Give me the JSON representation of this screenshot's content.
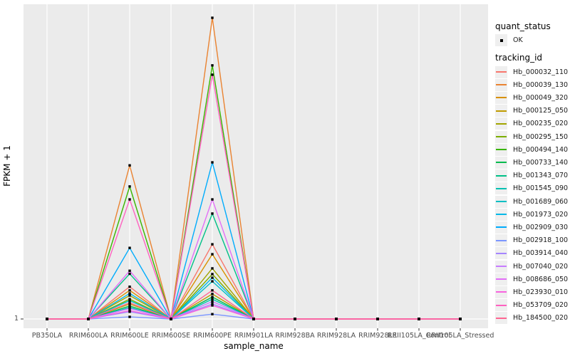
{
  "figure": {
    "x_axis_title": "sample_name",
    "y_axis_title": "FPKM + 1",
    "y_tick_label": "1"
  },
  "legend": {
    "quant_status_title": "quant_status",
    "quant_status_items": [
      {
        "label": "OK",
        "glyph": "black-point-icon"
      }
    ],
    "tracking_id_title": "tracking_id"
  },
  "colors": {
    "panel_background": "#EBEBEB",
    "gridline": "#FFFFFF",
    "axis_text": "#4D4D4D",
    "tick_mark": "#333333",
    "legend_key_background": "#EFEFEF",
    "point": "#000000"
  },
  "chart_data": {
    "type": "line",
    "title": "",
    "xlabel": "sample_name",
    "ylabel": "FPKM + 1",
    "legend_position": "right",
    "grid": "vertical white major gridlines on grey panel; single horizontal gridline at y = 1",
    "y_axis": {
      "scale": "log-like, only labelled tick is 1 at the baseline",
      "baseline_value": 1
    },
    "values_unit": "relative peak height above the FPKM+1=1 baseline (1.0 = tallest peak, Hb_000039_130 at RRIM600PE)",
    "point_layer": "black square point at every sample for every tracking_id (quant_status = OK)",
    "categories": [
      "PB350LA",
      "RRIM600LA",
      "RRIM600LE",
      "RRIM600SE",
      "RRIM600PE",
      "RRIM901LA",
      "RRIM928BA",
      "RRIM928LA",
      "RRIM928LE",
      "RRII105LA_Control",
      "RRII105LA_Stressed"
    ],
    "series": [
      {
        "name": "Hb_000032_110",
        "color": "#F8766D",
        "values": [
          0,
          0,
          0.107,
          0,
          0.248,
          0,
          0,
          0,
          0,
          0,
          0
        ]
      },
      {
        "name": "Hb_000039_130",
        "color": "#EA8331",
        "values": [
          0,
          0,
          0.51,
          0,
          1.0,
          0,
          0,
          0,
          0,
          0,
          0
        ]
      },
      {
        "name": "Hb_000049_320",
        "color": "#D89000",
        "values": [
          0,
          0,
          0.095,
          0,
          0.215,
          0,
          0,
          0,
          0,
          0,
          0
        ]
      },
      {
        "name": "Hb_000125_050",
        "color": "#C09B00",
        "values": [
          0,
          0,
          0.05,
          0,
          0.083,
          0,
          0,
          0,
          0,
          0,
          0
        ]
      },
      {
        "name": "Hb_000235_020",
        "color": "#A3A500",
        "values": [
          0,
          0,
          0.078,
          0,
          0.168,
          0,
          0,
          0,
          0,
          0,
          0
        ]
      },
      {
        "name": "Hb_000295_150",
        "color": "#7CAE00",
        "values": [
          0,
          0,
          0.066,
          0,
          0.149,
          0,
          0,
          0,
          0,
          0,
          0
        ]
      },
      {
        "name": "Hb_000494_140",
        "color": "#39B600",
        "values": [
          0,
          0,
          0.44,
          0,
          0.842,
          0,
          0,
          0,
          0,
          0,
          0
        ]
      },
      {
        "name": "Hb_000733_140",
        "color": "#00BB4E",
        "values": [
          0,
          0,
          0.043,
          0,
          0.073,
          0,
          0,
          0,
          0,
          0,
          0
        ]
      },
      {
        "name": "Hb_001343_070",
        "color": "#00C087",
        "values": [
          0,
          0,
          0.15,
          0,
          0.35,
          0,
          0,
          0,
          0,
          0,
          0
        ]
      },
      {
        "name": "Hb_001545_090",
        "color": "#00C0B2",
        "values": [
          0,
          0,
          0.038,
          0,
          0.066,
          0,
          0,
          0,
          0,
          0,
          0
        ]
      },
      {
        "name": "Hb_001689_060",
        "color": "#00BFC4",
        "values": [
          0,
          0,
          0.061,
          0,
          0.125,
          0,
          0,
          0,
          0,
          0,
          0
        ]
      },
      {
        "name": "Hb_001973_020",
        "color": "#00B8E7",
        "values": [
          0,
          0,
          0.085,
          0,
          0.137,
          0,
          0,
          0,
          0,
          0,
          0
        ]
      },
      {
        "name": "Hb_002909_030",
        "color": "#00ACFC",
        "values": [
          0,
          0,
          0.236,
          0,
          0.52,
          0,
          0,
          0,
          0,
          0,
          0
        ]
      },
      {
        "name": "Hb_002918_100",
        "color": "#7C96FF",
        "values": [
          0,
          0,
          0.007,
          0,
          0.016,
          0,
          0,
          0,
          0,
          0,
          0
        ]
      },
      {
        "name": "Hb_003914_040",
        "color": "#A585FF",
        "values": [
          0,
          0,
          0.024,
          0,
          0.05,
          0,
          0,
          0,
          0,
          0,
          0
        ]
      },
      {
        "name": "Hb_007040_020",
        "color": "#C77CFF",
        "values": [
          0,
          0,
          0.035,
          0,
          0.058,
          0,
          0,
          0,
          0,
          0,
          0
        ]
      },
      {
        "name": "Hb_008686_050",
        "color": "#E26EF7",
        "values": [
          0,
          0,
          0.16,
          0,
          0.397,
          0,
          0,
          0,
          0,
          0,
          0
        ]
      },
      {
        "name": "Hb_023930_010",
        "color": "#F863DF",
        "values": [
          0,
          0,
          0.028,
          0,
          0.045,
          0,
          0,
          0,
          0,
          0,
          0
        ]
      },
      {
        "name": "Hb_053709_020",
        "color": "#FF61C0",
        "values": [
          0,
          0,
          0.397,
          0,
          0.811,
          0,
          0,
          0,
          0,
          0,
          0
        ]
      },
      {
        "name": "Hb_184500_020",
        "color": "#FF6692",
        "values": [
          0,
          0,
          0.054,
          0,
          0.095,
          0,
          0,
          0,
          0,
          0,
          0
        ]
      }
    ]
  }
}
